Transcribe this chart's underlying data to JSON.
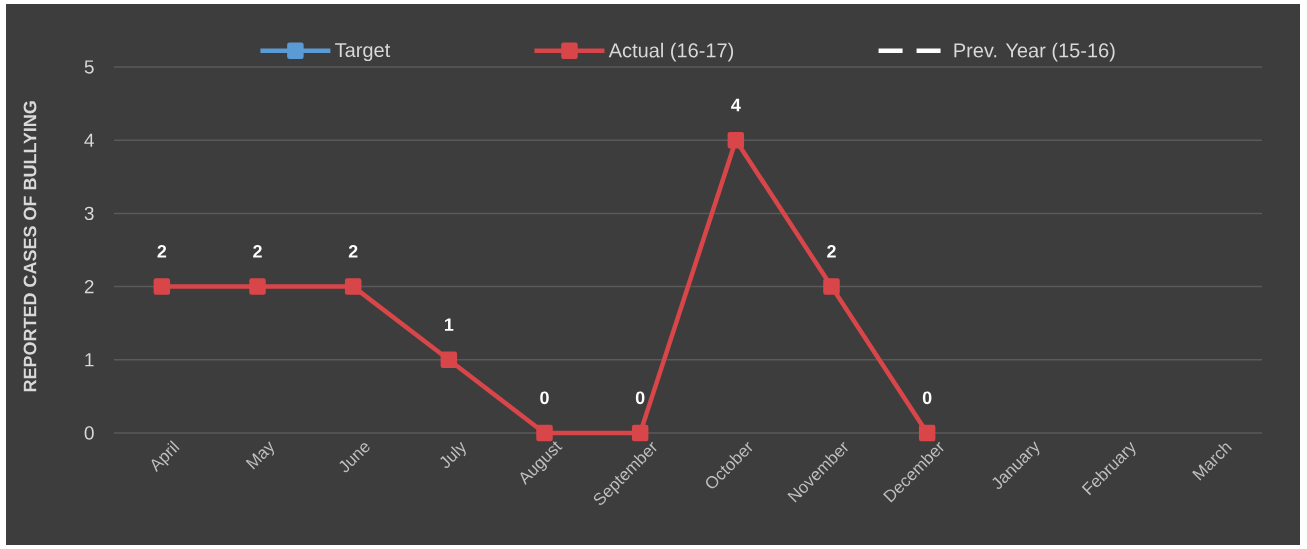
{
  "chart_data": {
    "type": "line",
    "ylabel": "REPORTED CASES OF BULLYING",
    "categories": [
      "April",
      "May",
      "June",
      "July",
      "August",
      "September",
      "October",
      "November",
      "December",
      "January",
      "February",
      "March"
    ],
    "series": [
      {
        "name": "Target",
        "color": "#5b9bd5",
        "marker": "square",
        "line_style": "solid",
        "values": [
          null,
          null,
          null,
          null,
          null,
          null,
          null,
          null,
          null,
          null,
          null,
          null
        ]
      },
      {
        "name": "Actual (16-17)",
        "color": "#d9464a",
        "marker": "square",
        "line_style": "solid",
        "values": [
          2,
          2,
          2,
          1,
          0,
          0,
          4,
          2,
          0,
          null,
          null,
          null
        ]
      },
      {
        "name": "Prev. Year (15-16)",
        "color": "#ffffff",
        "marker": "none",
        "line_style": "dashed",
        "values": [
          null,
          null,
          null,
          null,
          null,
          null,
          null,
          null,
          null,
          null,
          null,
          null
        ]
      }
    ],
    "ylim": [
      0,
      5
    ],
    "yticks": [
      0,
      1,
      2,
      3,
      4,
      5
    ],
    "grid": "y",
    "legend": "top",
    "data_labels": true
  }
}
